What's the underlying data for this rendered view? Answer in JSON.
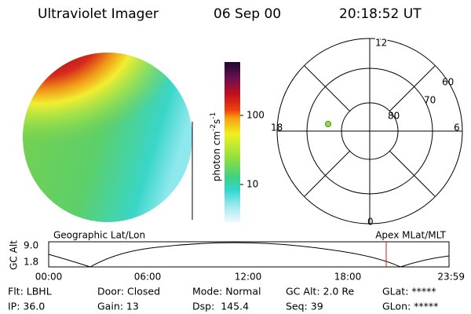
{
  "header": {
    "instrument": "Ultraviolet Imager",
    "date": "06 Sep 00",
    "time": "20:18:52 UT"
  },
  "colorbar": {
    "label": "photon cm",
    "exp1": "-2",
    "unit2": "s",
    "exp2": "-1",
    "ticks": [
      "100",
      "10"
    ]
  },
  "polar": {
    "top": "12",
    "left": "18",
    "right": "6",
    "bottom": "0",
    "rings": [
      "60",
      "70",
      "80"
    ]
  },
  "timeline": {
    "left_title": "Geographic Lat/Lon",
    "right_title": "Apex MLat/MLT",
    "y_label": "GC Alt",
    "y_ticks": [
      "9.0",
      "1.8"
    ],
    "x_ticks": [
      "00:00",
      "06:00",
      "12:00",
      "18:00",
      "23:59"
    ]
  },
  "status": [
    [
      "Flt: LBHL",
      "Door: Closed",
      "Mode: Normal",
      "GC Alt: 2.0 Re",
      "GLat: *****"
    ],
    [
      "IP: 36.0",
      "Gain: 13",
      "Dsp:  145.4",
      "Seq: 39",
      "GLon: *****"
    ]
  ]
}
